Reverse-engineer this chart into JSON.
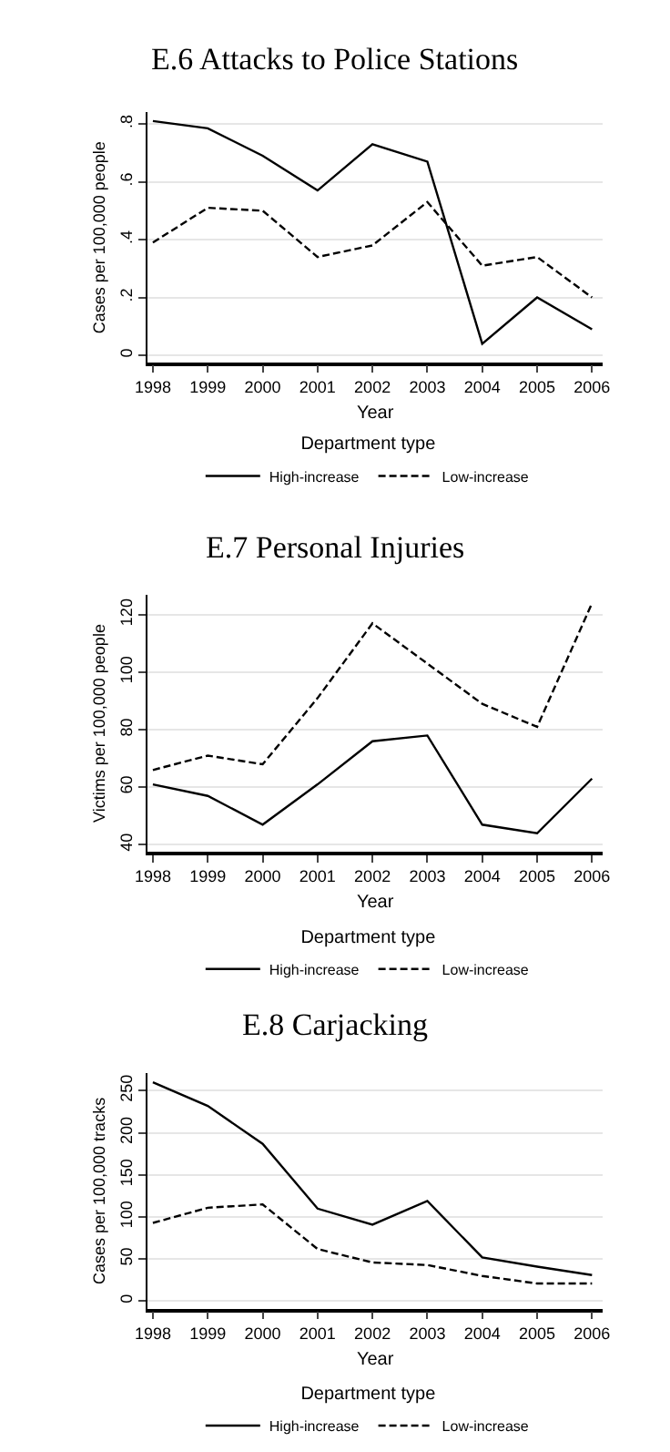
{
  "chart_data": [
    {
      "type": "line",
      "title": "E.6 Attacks to Police Stations",
      "xlabel": "Year",
      "ylabel": "Cases per 100,000 people",
      "legend_title": "Department type",
      "x": [
        1998,
        1999,
        2000,
        2001,
        2002,
        2003,
        2004,
        2005,
        2006
      ],
      "series": [
        {
          "name": "High-increase",
          "color": "#000000",
          "line_style": "solid",
          "values": [
            0.81,
            0.785,
            0.69,
            0.57,
            0.73,
            0.67,
            0.04,
            0.2,
            0.09
          ]
        },
        {
          "name": "Low-increase",
          "color": "#000000",
          "line_style": "dashed",
          "values": [
            0.39,
            0.51,
            0.5,
            0.34,
            0.38,
            0.53,
            0.31,
            0.34,
            0.2
          ]
        }
      ],
      "xlim": [
        1997.9,
        2006.2
      ],
      "xticks": [
        1998,
        1999,
        2000,
        2001,
        2002,
        2003,
        2004,
        2005,
        2006
      ],
      "ylim": [
        -0.025,
        0.84
      ],
      "yticks": [
        0,
        {
          "value": 0.2,
          "label": ".2"
        },
        {
          "value": 0.4,
          "label": ".4"
        },
        {
          "value": 0.6,
          "label": ".6"
        },
        {
          "value": 0.8,
          "label": ".8"
        }
      ],
      "grid": "y",
      "legend": "bottom",
      "marker": "none"
    },
    {
      "type": "line",
      "title": "E.7 Personal Injuries",
      "xlabel": "Year",
      "ylabel": "Victims per 100,000 people",
      "legend_title": "Department type",
      "x": [
        1998,
        1999,
        2000,
        2001,
        2002,
        2003,
        2004,
        2005,
        2006
      ],
      "series": [
        {
          "name": "High-increase",
          "color": "#000000",
          "line_style": "solid",
          "values": [
            61,
            57,
            47,
            61,
            76,
            78,
            47,
            44,
            63
          ]
        },
        {
          "name": "Low-increase",
          "color": "#000000",
          "line_style": "dashed",
          "values": [
            66,
            71,
            68,
            91,
            117,
            103,
            89,
            81,
            124
          ]
        }
      ],
      "xlim": [
        1997.9,
        2006.2
      ],
      "xticks": [
        1998,
        1999,
        2000,
        2001,
        2002,
        2003,
        2004,
        2005,
        2006
      ],
      "ylim": [
        37.5,
        127
      ],
      "yticks": [
        40,
        60,
        80,
        100,
        120
      ],
      "grid": "y",
      "legend": "bottom",
      "marker": "none"
    },
    {
      "type": "line",
      "title": "E.8 Carjacking",
      "xlabel": "Year",
      "ylabel": "Cases per 100,000 tracks",
      "legend_title": "Department type",
      "x": [
        1998,
        1999,
        2000,
        2001,
        2002,
        2003,
        2004,
        2005,
        2006
      ],
      "series": [
        {
          "name": "High-increase",
          "color": "#000000",
          "line_style": "solid",
          "values": [
            260,
            232,
            187,
            110,
            91,
            119,
            52,
            41,
            31
          ]
        },
        {
          "name": "Low-increase",
          "color": "#000000",
          "line_style": "dashed",
          "values": [
            93,
            111,
            115,
            62,
            46,
            43,
            30,
            21,
            21
          ]
        }
      ],
      "xlim": [
        1997.9,
        2006.2
      ],
      "xticks": [
        1998,
        1999,
        2000,
        2001,
        2002,
        2003,
        2004,
        2005,
        2006
      ],
      "ylim": [
        -9,
        271
      ],
      "yticks": [
        0,
        50,
        100,
        150,
        200,
        250
      ],
      "grid": "y",
      "legend": "bottom",
      "marker": "none"
    }
  ]
}
